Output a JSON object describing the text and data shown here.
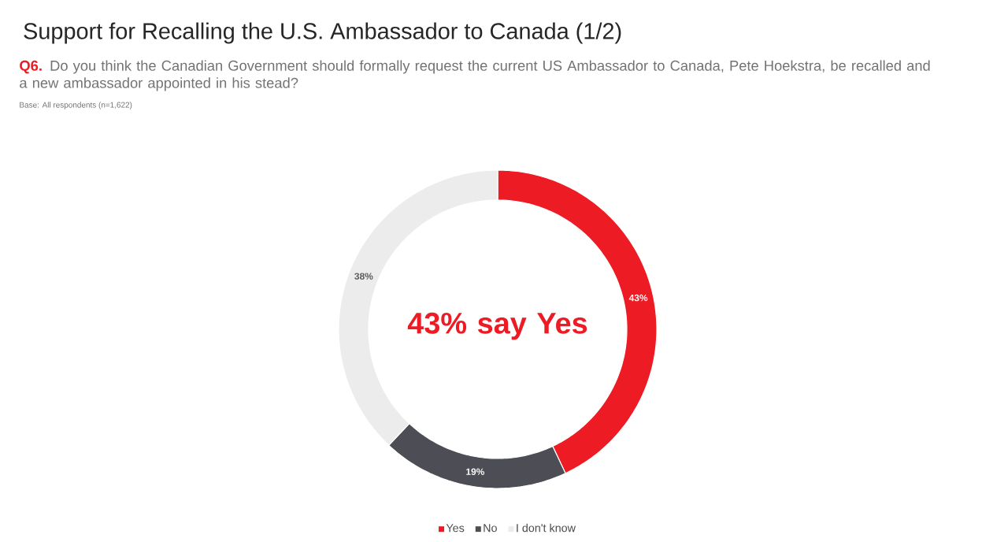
{
  "chart_data": {
    "type": "donut",
    "title": "Support for Recalling the U.S. Ambassador to Canada (1/2)",
    "subtitle": "Do you think the Canadian Government should formally request the current US Ambassador to Canada, Pete Hoekstra, be recalled and a new ambassador appointed in his stead?",
    "annotations": [
      "Q6.",
      "Base: All respondents (n=1,622)",
      "43% say Yes"
    ],
    "categories": [
      "Yes",
      "No",
      "I don't know"
    ],
    "values": [
      43,
      19,
      38
    ],
    "value_labels": [
      "43%",
      "19%",
      "38%"
    ],
    "colors": [
      "#ed1c24",
      "#4d4d55",
      "#ececec"
    ],
    "legend": "bottom"
  }
}
